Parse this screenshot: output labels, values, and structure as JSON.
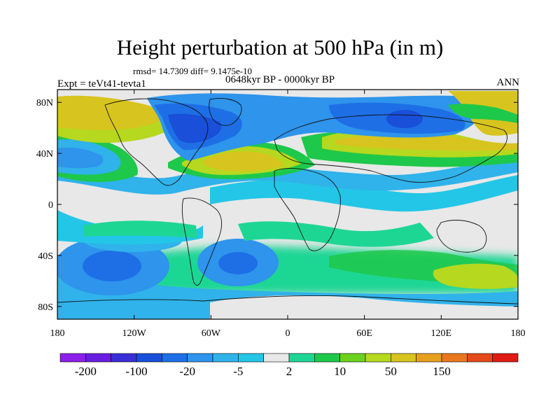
{
  "title": "Height perturbation at 500 hPa (in m)",
  "stats": "rmsd= 14.7309 diff= 9.1475e-10",
  "period": "0648kyr BP - 0000kyr BP",
  "experiment": "Expt = teVt41-tevta1",
  "season": "ANN",
  "axes": {
    "lat_ticks": [
      "80N",
      "40N",
      "0",
      "40S",
      "80S"
    ],
    "lat_values": [
      80,
      40,
      0,
      -40,
      -80
    ],
    "lon_ticks": [
      "180",
      "120W",
      "60W",
      "0",
      "60E",
      "120E",
      "180"
    ],
    "lon_values": [
      -180,
      -120,
      -60,
      0,
      60,
      120,
      180
    ],
    "lon_range": [
      -180,
      180
    ],
    "lat_range": [
      -90,
      90
    ]
  },
  "colorbar": {
    "colors": [
      "#8c20e8",
      "#6a1ee0",
      "#3a2fd6",
      "#1a4fd9",
      "#1e6fe6",
      "#2e94ec",
      "#30b2ea",
      "#23c6e6",
      "#e8e8e8",
      "#1ed694",
      "#1ec84a",
      "#6cd21e",
      "#b6d81e",
      "#d8c41e",
      "#e6a01e",
      "#e8781e",
      "#e44a1a",
      "#e01a14"
    ],
    "labels": [
      "-200",
      "-100",
      "-20",
      "-5",
      "2",
      "10",
      "50",
      "150"
    ]
  },
  "colors": {
    "background": "#ffffff",
    "neutral": "#e8e8e8",
    "frame": "#000000"
  }
}
